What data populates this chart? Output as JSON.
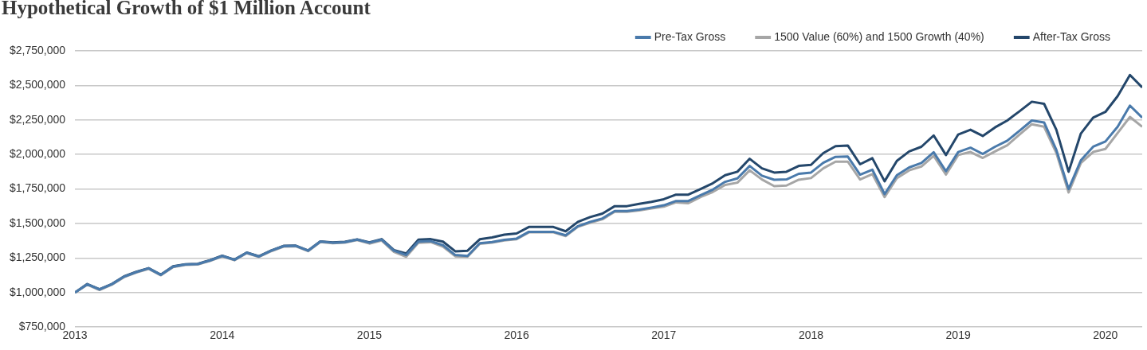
{
  "chart_data": {
    "type": "line",
    "title": "Hypothetical Growth of $1 Million Account",
    "x": [
      "2013-01",
      "2013-02",
      "2013-03",
      "2013-04",
      "2013-05",
      "2013-06",
      "2013-07",
      "2013-08",
      "2013-09",
      "2013-10",
      "2013-11",
      "2013-12",
      "2014-01",
      "2014-02",
      "2014-03",
      "2014-04",
      "2014-05",
      "2014-06",
      "2014-07",
      "2014-08",
      "2014-09",
      "2014-10",
      "2014-11",
      "2014-12",
      "2015-01",
      "2015-02",
      "2015-03",
      "2015-04",
      "2015-05",
      "2015-06",
      "2015-07",
      "2015-08",
      "2015-09",
      "2015-10",
      "2015-11",
      "2015-12",
      "2016-01",
      "2016-02",
      "2016-03",
      "2016-04",
      "2016-05",
      "2016-06",
      "2016-07",
      "2016-08",
      "2016-09",
      "2016-10",
      "2016-11",
      "2016-12",
      "2017-01",
      "2017-02",
      "2017-03",
      "2017-04",
      "2017-05",
      "2017-06",
      "2017-07",
      "2017-08",
      "2017-09",
      "2017-10",
      "2017-11",
      "2017-12",
      "2018-01",
      "2018-02",
      "2018-03",
      "2018-04",
      "2018-05",
      "2018-06",
      "2018-07",
      "2018-08",
      "2018-09",
      "2018-10",
      "2018-11",
      "2018-12",
      "2019-01",
      "2019-02",
      "2019-03",
      "2019-04",
      "2019-05",
      "2019-06",
      "2019-07",
      "2019-08",
      "2019-09",
      "2019-10",
      "2019-11",
      "2019-12",
      "2020-01",
      "2020-02",
      "2020-03",
      "2020-04"
    ],
    "series": [
      {
        "name": "Pre-Tax Gross",
        "color": "#4a7aab",
        "values": [
          1000000,
          1060000,
          1022000,
          1060000,
          1115000,
          1148000,
          1175000,
          1128000,
          1188000,
          1203000,
          1206000,
          1232000,
          1265000,
          1237000,
          1288000,
          1261000,
          1303000,
          1336000,
          1338000,
          1303000,
          1369000,
          1361000,
          1365000,
          1383000,
          1361000,
          1383000,
          1303000,
          1272000,
          1369000,
          1373000,
          1343000,
          1272000,
          1265000,
          1357000,
          1366000,
          1382000,
          1391000,
          1440000,
          1440000,
          1440000,
          1415000,
          1481000,
          1512000,
          1537000,
          1591000,
          1591000,
          1601000,
          1616000,
          1632000,
          1663000,
          1663000,
          1705000,
          1746000,
          1802000,
          1827000,
          1917000,
          1846000,
          1817000,
          1819000,
          1860000,
          1869000,
          1940000,
          1983000,
          1985000,
          1854000,
          1890000,
          1713000,
          1850000,
          1906000,
          1938000,
          2016000,
          1879000,
          2018000,
          2049000,
          2004000,
          2056000,
          2100000,
          2172000,
          2246000,
          2232000,
          2033000,
          1750000,
          1958000,
          2056000,
          2094000,
          2201000,
          2354000,
          2267000
        ]
      },
      {
        "name": "1500 Value (60%) and 1500 Growth (40%)",
        "color": "#a6a6a6",
        "values": [
          1000000,
          1057000,
          1019000,
          1057000,
          1112000,
          1145000,
          1172000,
          1125000,
          1185000,
          1200000,
          1203000,
          1229000,
          1262000,
          1234000,
          1285000,
          1258000,
          1300000,
          1333000,
          1335000,
          1300000,
          1366000,
          1358000,
          1362000,
          1380000,
          1355000,
          1377000,
          1295000,
          1259000,
          1361000,
          1365000,
          1332000,
          1263000,
          1259000,
          1353000,
          1362000,
          1378000,
          1386000,
          1436000,
          1436000,
          1436000,
          1409000,
          1477000,
          1506000,
          1531000,
          1585000,
          1585000,
          1595000,
          1610000,
          1622000,
          1653000,
          1647000,
          1692000,
          1729000,
          1779000,
          1796000,
          1885000,
          1819000,
          1771000,
          1775000,
          1817000,
          1829000,
          1900000,
          1948000,
          1948000,
          1819000,
          1858000,
          1692000,
          1829000,
          1885000,
          1913000,
          1990000,
          1854000,
          1996000,
          2018000,
          1975000,
          2022000,
          2067000,
          2145000,
          2219000,
          2201000,
          2011000,
          1725000,
          1938000,
          2018000,
          2040000,
          2156000,
          2272000,
          2201000
        ]
      },
      {
        "name": "After-Tax Gross",
        "color": "#24476b",
        "values": [
          1000000,
          1062000,
          1024000,
          1062000,
          1117000,
          1150000,
          1177000,
          1130000,
          1190000,
          1205000,
          1208000,
          1234000,
          1267000,
          1239000,
          1290000,
          1263000,
          1305000,
          1338000,
          1340000,
          1305000,
          1371000,
          1363000,
          1367000,
          1385000,
          1363000,
          1387000,
          1308000,
          1283000,
          1383000,
          1387000,
          1369000,
          1299000,
          1303000,
          1386000,
          1399000,
          1419000,
          1428000,
          1475000,
          1475000,
          1475000,
          1444000,
          1512000,
          1547000,
          1572000,
          1626000,
          1626000,
          1643000,
          1657000,
          1676000,
          1709000,
          1709000,
          1750000,
          1792000,
          1850000,
          1875000,
          1969000,
          1900000,
          1869000,
          1875000,
          1917000,
          1925000,
          2010000,
          2060000,
          2065000,
          1929000,
          1973000,
          1806000,
          1954000,
          2022000,
          2056000,
          2138000,
          1996000,
          2145000,
          2179000,
          2134000,
          2196000,
          2246000,
          2313000,
          2382000,
          2367000,
          2179000,
          1875000,
          2152000,
          2267000,
          2308000,
          2423000,
          2576000,
          2485000
        ]
      }
    ],
    "xlim": [
      "2013-01",
      "2020-04"
    ],
    "xticks": [
      "2013",
      "2014",
      "2015",
      "2016",
      "2017",
      "2018",
      "2019",
      "2020"
    ],
    "ylim": [
      750000,
      2750000
    ],
    "yticks": [
      {
        "value": 750000,
        "label": "$750,000"
      },
      {
        "value": 1000000,
        "label": "$1,000,000"
      },
      {
        "value": 1250000,
        "label": "$1,250,000"
      },
      {
        "value": 1500000,
        "label": "$1,500,000"
      },
      {
        "value": 1750000,
        "label": "$1,750,000"
      },
      {
        "value": 2000000,
        "label": "$2,000,000"
      },
      {
        "value": 2250000,
        "label": "$2,250,000"
      },
      {
        "value": 2500000,
        "label": "$2,500,000"
      },
      {
        "value": 2750000,
        "label": "$2,750,000"
      }
    ],
    "grid": "y",
    "legend": "top right",
    "marker": "none",
    "line_style": "solid"
  }
}
